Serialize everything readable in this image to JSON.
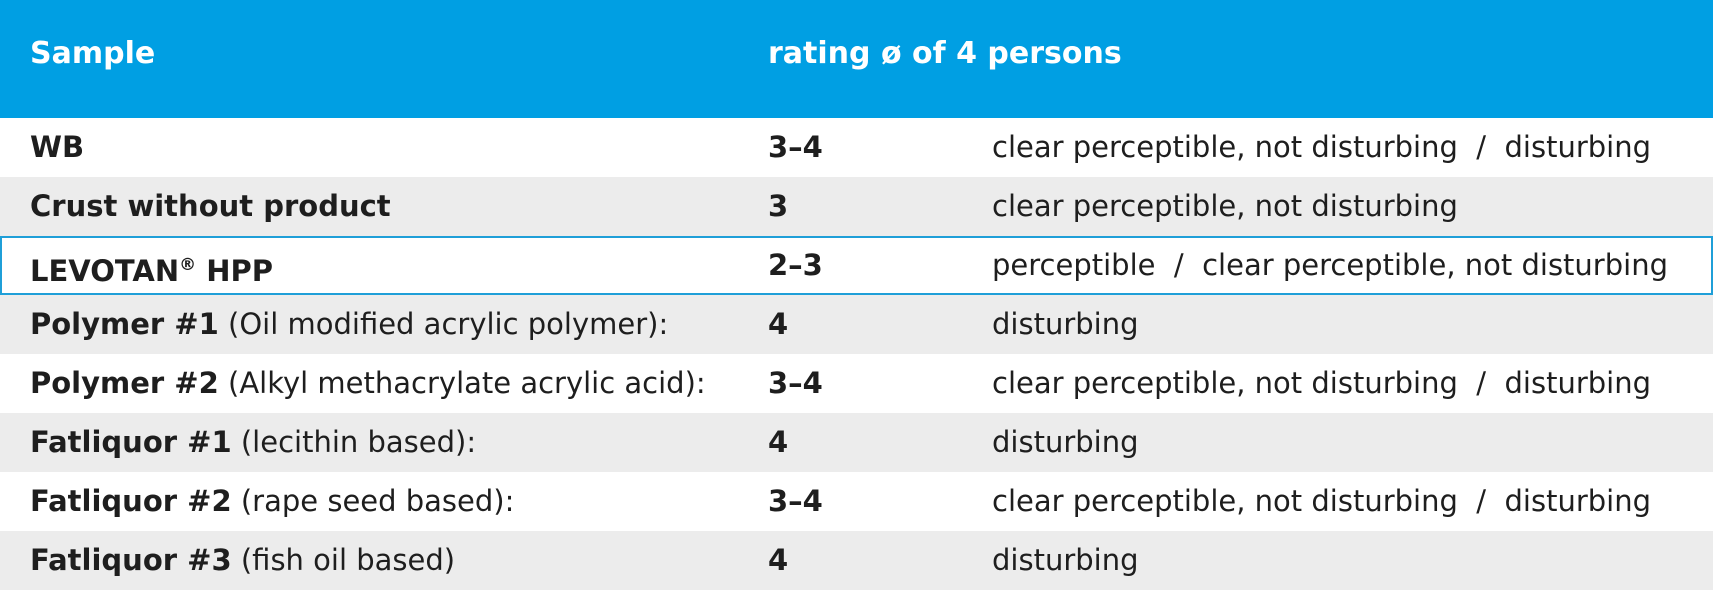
{
  "header": {
    "sample_label": "Sample",
    "rating_label": "rating ø of 4 persons"
  },
  "rows": [
    {
      "name_bold": "WB",
      "name_rest": "",
      "rating": "3–4",
      "description": "clear perceptible, not disturbing  /  disturbing"
    },
    {
      "name_bold": "Crust without product",
      "name_rest": "",
      "rating": "3",
      "description": "clear perceptible, not disturbing"
    },
    {
      "name_bold": "LEVOTAN",
      "name_sup": "®",
      "name_bold_after": " HPP",
      "name_rest": "",
      "rating": "2–3",
      "description": "perceptible  /  clear perceptible, not disturbing",
      "highlighted": true
    },
    {
      "name_bold": "Polymer #1",
      "name_rest": " (Oil modified acrylic polymer):",
      "rating": "4",
      "description": "disturbing"
    },
    {
      "name_bold": "Polymer #2",
      "name_rest": " (Alkyl methacrylate acrylic acid):",
      "rating": "3–4",
      "description": "clear perceptible, not disturbing  /  disturbing"
    },
    {
      "name_bold": "Fatliquor #1",
      "name_rest": " (lecithin based):",
      "rating": "4",
      "description": "disturbing"
    },
    {
      "name_bold": "Fatliquor #2",
      "name_rest": " (rape seed based):",
      "rating": "3–4",
      "description": "clear perceptible, not disturbing  /  disturbing"
    },
    {
      "name_bold": "Fatliquor #3",
      "name_rest": " (fish oil based)",
      "rating": "4",
      "description": "disturbing"
    }
  ],
  "colors": {
    "header_background": "#009fe3",
    "header_text": "#ffffff",
    "row_alt_background": "#ececec",
    "highlight_border": "#1f9fd8"
  }
}
